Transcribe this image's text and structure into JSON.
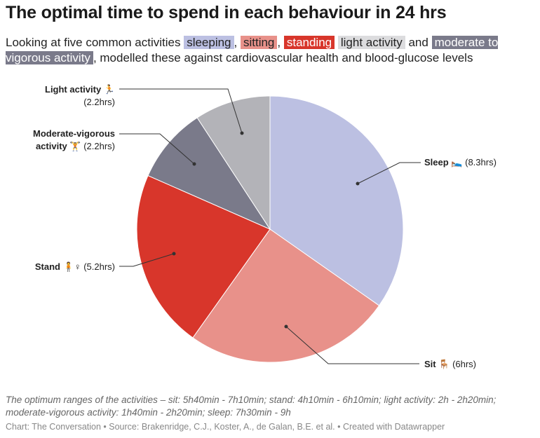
{
  "title": "The optimal time to spend in each behaviour in 24 hrs",
  "subtitle": {
    "intro": "Looking at five common activities",
    "sleeping": "sleeping",
    "sitting": "sitting",
    "standing": "standing",
    "light": "light activity",
    "and": "and",
    "moderate": "moderate to vigorous activity",
    "outro": ", modelled these against cardiovascular health and blood-glucose levels"
  },
  "chart_data": {
    "type": "pie",
    "start": "top, clockwise",
    "slices": [
      {
        "name": "Sleep",
        "icon": "🛌",
        "value": 8.3,
        "label": "(8.3hrs)",
        "color": "#bcc0e2"
      },
      {
        "name": "Sit",
        "icon": "🪑",
        "value": 6,
        "label": "(6hrs)",
        "color": "#e8918a"
      },
      {
        "name": "Stand",
        "icon": "🧍♀",
        "value": 5.2,
        "label": "(5.2hrs)",
        "color": "#d8362b"
      },
      {
        "name": "Moderate-vigorous activity",
        "name_line1": "Moderate-vigorous",
        "name_line2": "activity",
        "icon": "🏋",
        "value": 2.2,
        "label": "(2.2hrs)",
        "color": "#7a7a8a"
      },
      {
        "name": "Light activity",
        "icon": "🏃",
        "value": 2.2,
        "label": "(2.2hrs)",
        "color": "#b3b3b8"
      }
    ]
  },
  "note": "The optimum ranges of the activities – sit: 5h40min - 7h10min; stand: 4h10min - 6h10min; light activity: 2h - 2h20min; moderate-vigorous activity: 1h40min - 2h20min; sleep: 7h30min - 9h",
  "footer": "Chart: The Conversation • Source: Brakenridge, C.J., Koster, A., de Galan, B.E. et al. • Created with Datawrapper"
}
